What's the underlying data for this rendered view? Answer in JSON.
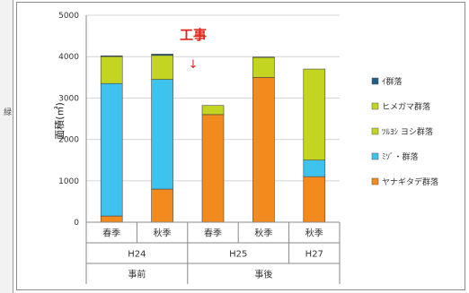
{
  "chart_data": {
    "type": "bar",
    "stacked": true,
    "ylabel": "面積(㎡)",
    "ylim": [
      0,
      5000
    ],
    "yticks": [
      0,
      1000,
      2000,
      3000,
      4000,
      5000
    ],
    "grid": true,
    "legend_position": "right",
    "categories": [
      "春季",
      "秋季",
      "春季",
      "秋季",
      "秋季"
    ],
    "groups_level2": [
      {
        "label": "H24",
        "span": 2
      },
      {
        "label": "H25",
        "span": 2
      },
      {
        "label": "H27",
        "span": 1
      }
    ],
    "groups_level1": [
      {
        "label": "事前",
        "span": 2
      },
      {
        "label": "事後",
        "span": 3
      }
    ],
    "series": [
      {
        "name": "ヤナギタデ群落",
        "color": "#f28a1e",
        "values": [
          150,
          800,
          2600,
          3500,
          1100
        ]
      },
      {
        "name": "ﾐｿﾞ・群落",
        "color": "#3ec3ee",
        "values": [
          3200,
          2650,
          0,
          0,
          400
        ]
      },
      {
        "name": "ﾂﾙﾖｼ ヨシ群落",
        "color": "#c3d520",
        "values": [
          650,
          580,
          220,
          480,
          2200
        ]
      },
      {
        "name": "ヒメガマ群落",
        "color": "#c3d520",
        "values": [
          0,
          0,
          0,
          0,
          0
        ]
      },
      {
        "name": "ｲ群落",
        "color": "#1f5e8c",
        "values": [
          20,
          30,
          0,
          10,
          0
        ]
      }
    ],
    "legend_order": [
      "ｲ群落",
      "ヒメガマ群落",
      "ﾂﾙﾖｼ ヨシ群落",
      "ﾐｿﾞ・群落",
      "ヤナギタデ群落"
    ],
    "annotation": {
      "text": "工事",
      "arrow": "↓"
    }
  },
  "left_fragment": "緑"
}
